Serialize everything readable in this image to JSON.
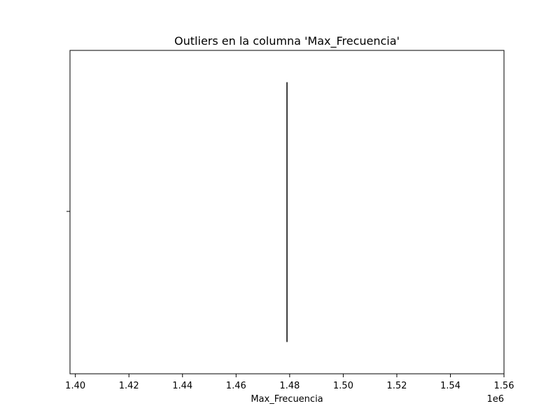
{
  "chart_data": {
    "type": "box",
    "title": "Outliers en la columna 'Max_Frecuencia'",
    "xlabel": "Max_Frecuencia",
    "ylabel": "",
    "x_offset_text": "1e6",
    "xlim": [
      1.398,
      1.56
    ],
    "x_ticks": [
      1.4,
      1.42,
      1.44,
      1.46,
      1.48,
      1.5,
      1.52,
      1.54,
      1.56
    ],
    "x_tick_labels": [
      "1.40",
      "1.42",
      "1.44",
      "1.46",
      "1.48",
      "1.50",
      "1.52",
      "1.54",
      "1.56"
    ],
    "grid": false,
    "box": {
      "min": 1.479,
      "q1": 1.479,
      "median": 1.479,
      "q3": 1.479,
      "max": 1.479
    },
    "colors": {
      "box_line": "#3f3f3f",
      "axes": "#000000"
    }
  }
}
